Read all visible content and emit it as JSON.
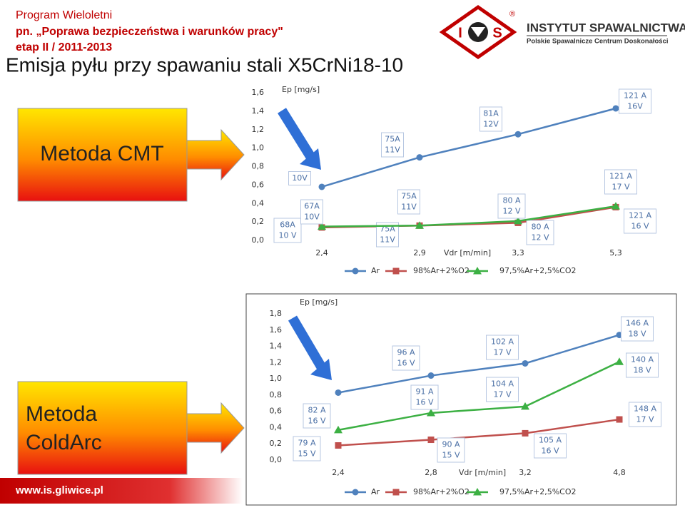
{
  "header": {
    "program": "Program Wieloletni",
    "name": "pn. „Poprawa bezpieczeństwa i warunków pracy\"",
    "stage": "etap II  / 2011-2013",
    "title": "Emisja pyłu przy spawaniu stali X5CrNi18-10"
  },
  "logo": {
    "left": "I",
    "right": "S",
    "mark": "®",
    "institute": "INSTYTUT SPAWALNICTWA",
    "subtitle": "Polskie Spawalnicze Centrum Doskonałości"
  },
  "methods": [
    "Metoda CMT",
    "Metoda ColdArc"
  ],
  "footer": "www.is.gliwice.pl",
  "chart_data": [
    {
      "type": "line",
      "y_label": "Ep [mg/s]",
      "x_label": "Vdr [m/min]",
      "categories": [
        "2,4",
        "2,9",
        "3,3",
        "5,3"
      ],
      "ylim": [
        0,
        1.6
      ],
      "yticks": [
        {
          "value": 0,
          "label": "0,0"
        },
        {
          "value": 0.2,
          "label": "0,2"
        },
        {
          "value": 0.4,
          "label": "0,4"
        },
        {
          "value": 0.6,
          "label": "0,6"
        },
        {
          "value": 0.8,
          "label": "0,8"
        },
        {
          "value": 1.0,
          "label": "1,0"
        },
        {
          "value": 1.2,
          "label": "1,2"
        },
        {
          "value": 1.4,
          "label": "1,4"
        },
        {
          "value": 1.6,
          "label": "1,6"
        }
      ],
      "grid": false,
      "series": [
        {
          "name": "Ar",
          "color": "#4f81bd",
          "marker": "circle",
          "values": [
            0.58,
            0.9,
            1.15,
            1.43
          ],
          "labels": [
            [
              "10V"
            ],
            [
              "75A",
              "11V"
            ],
            [
              "81A",
              "12V"
            ],
            [
              "121 A",
              "16V"
            ]
          ]
        },
        {
          "name": "98%Ar+2%O2",
          "color": "#c0504d",
          "marker": "square",
          "values": [
            0.14,
            0.16,
            0.19,
            0.36
          ],
          "labels": [
            [
              "68A",
              "10 V"
            ],
            [
              "75A",
              "11V"
            ],
            [
              "80 A",
              "12 V"
            ],
            [
              "121 A",
              "16 V"
            ]
          ]
        },
        {
          "name": "97,5%Ar+2,5%CO2",
          "color": "#3cb043",
          "marker": "triangle",
          "values": [
            0.15,
            0.16,
            0.21,
            0.37
          ],
          "labels": [
            [
              "67A",
              "10V"
            ],
            [
              "75A",
              "11V"
            ],
            [
              "80 A",
              "12 V"
            ],
            [
              "121 A",
              "17 V"
            ]
          ]
        }
      ]
    },
    {
      "type": "line",
      "y_label": "Ep [mg/s]",
      "x_label": "Vdr [m/min]",
      "categories": [
        "2,4",
        "2,8",
        "3,2",
        "4,8"
      ],
      "ylim": [
        0,
        1.8
      ],
      "yticks": [
        {
          "value": 0,
          "label": "0,0"
        },
        {
          "value": 0.2,
          "label": "0,2"
        },
        {
          "value": 0.4,
          "label": "0,4"
        },
        {
          "value": 0.6,
          "label": "0,6"
        },
        {
          "value": 0.8,
          "label": "0,8"
        },
        {
          "value": 1.0,
          "label": "1,0"
        },
        {
          "value": 1.2,
          "label": "1,2"
        },
        {
          "value": 1.4,
          "label": "1,4"
        },
        {
          "value": 1.6,
          "label": "1,6"
        },
        {
          "value": 1.8,
          "label": "1,8"
        }
      ],
      "grid": false,
      "series": [
        {
          "name": "Ar",
          "color": "#4f81bd",
          "marker": "circle",
          "values": [
            0.83,
            1.04,
            1.19,
            1.54
          ],
          "labels": [
            null,
            [
              "96 A",
              "16 V"
            ],
            [
              "102 A",
              "17 V"
            ],
            [
              "146 A",
              "18 V"
            ]
          ]
        },
        {
          "name": "98%Ar+2%O2",
          "color": "#c0504d",
          "marker": "square",
          "values": [
            0.18,
            0.25,
            0.33,
            0.5
          ],
          "labels": [
            [
              "79 A",
              "15 V"
            ],
            [
              "90 A",
              "15 V"
            ],
            [
              "105 A",
              "16 V"
            ],
            [
              "148 A",
              "17 V"
            ]
          ]
        },
        {
          "name": "97,5%Ar+2,5%CO2",
          "color": "#3cb043",
          "marker": "triangle",
          "values": [
            0.37,
            0.58,
            0.66,
            1.21
          ],
          "labels": [
            [
              "82 A",
              "16 V"
            ],
            [
              "91 A",
              "16 V"
            ],
            [
              "104 A",
              "17 V"
            ],
            [
              "140 A",
              "18 V"
            ]
          ]
        }
      ]
    }
  ]
}
